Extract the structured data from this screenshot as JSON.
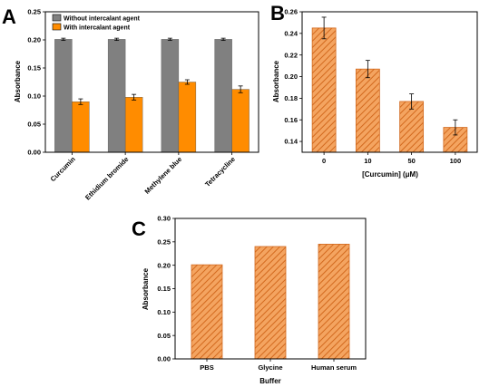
{
  "colors": {
    "grey": "#808080",
    "orange": "#ff8c00",
    "hatch_fill": "#f4a460",
    "hatch_stroke": "#d2691e"
  },
  "chart_data": [
    {
      "panel": "A",
      "type": "bar",
      "categories": [
        "Curcumin",
        "Ethidium bromide",
        "Methylene blue",
        "Tetracycline"
      ],
      "series": [
        {
          "name": "Without intercalant agent",
          "values": [
            0.201,
            0.201,
            0.201,
            0.201
          ],
          "errors": [
            0.002,
            0.002,
            0.002,
            0.002
          ]
        },
        {
          "name": "With intercalant agent",
          "values": [
            0.09,
            0.098,
            0.125,
            0.112
          ],
          "errors": [
            0.005,
            0.005,
            0.004,
            0.006
          ]
        }
      ],
      "xlabel": "",
      "ylabel": "Absorbance",
      "ylim": [
        0,
        0.25
      ],
      "yticks": [
        "0.00",
        "0.05",
        "0.10",
        "0.15",
        "0.20",
        "0.25"
      ],
      "legend_position": "top-right"
    },
    {
      "panel": "B",
      "type": "bar",
      "categories": [
        "0",
        "10",
        "50",
        "100"
      ],
      "values": [
        0.245,
        0.207,
        0.177,
        0.153
      ],
      "errors": [
        0.01,
        0.008,
        0.007,
        0.007
      ],
      "xlabel": "[Curcumin] (μM)",
      "ylabel": "Absorbance",
      "ylim": [
        0.13,
        0.26
      ],
      "yticks": [
        "0.14",
        "0.16",
        "0.18",
        "0.20",
        "0.22",
        "0.24",
        "0.26"
      ]
    },
    {
      "panel": "C",
      "type": "bar",
      "categories": [
        "PBS",
        "Glycine",
        "Human serum"
      ],
      "values": [
        0.201,
        0.24,
        0.245
      ],
      "xlabel": "Buffer",
      "ylabel": "Absorbance",
      "ylim": [
        0,
        0.3
      ],
      "yticks": [
        "0.00",
        "0.05",
        "0.10",
        "0.15",
        "0.20",
        "0.25",
        "0.30"
      ]
    }
  ]
}
